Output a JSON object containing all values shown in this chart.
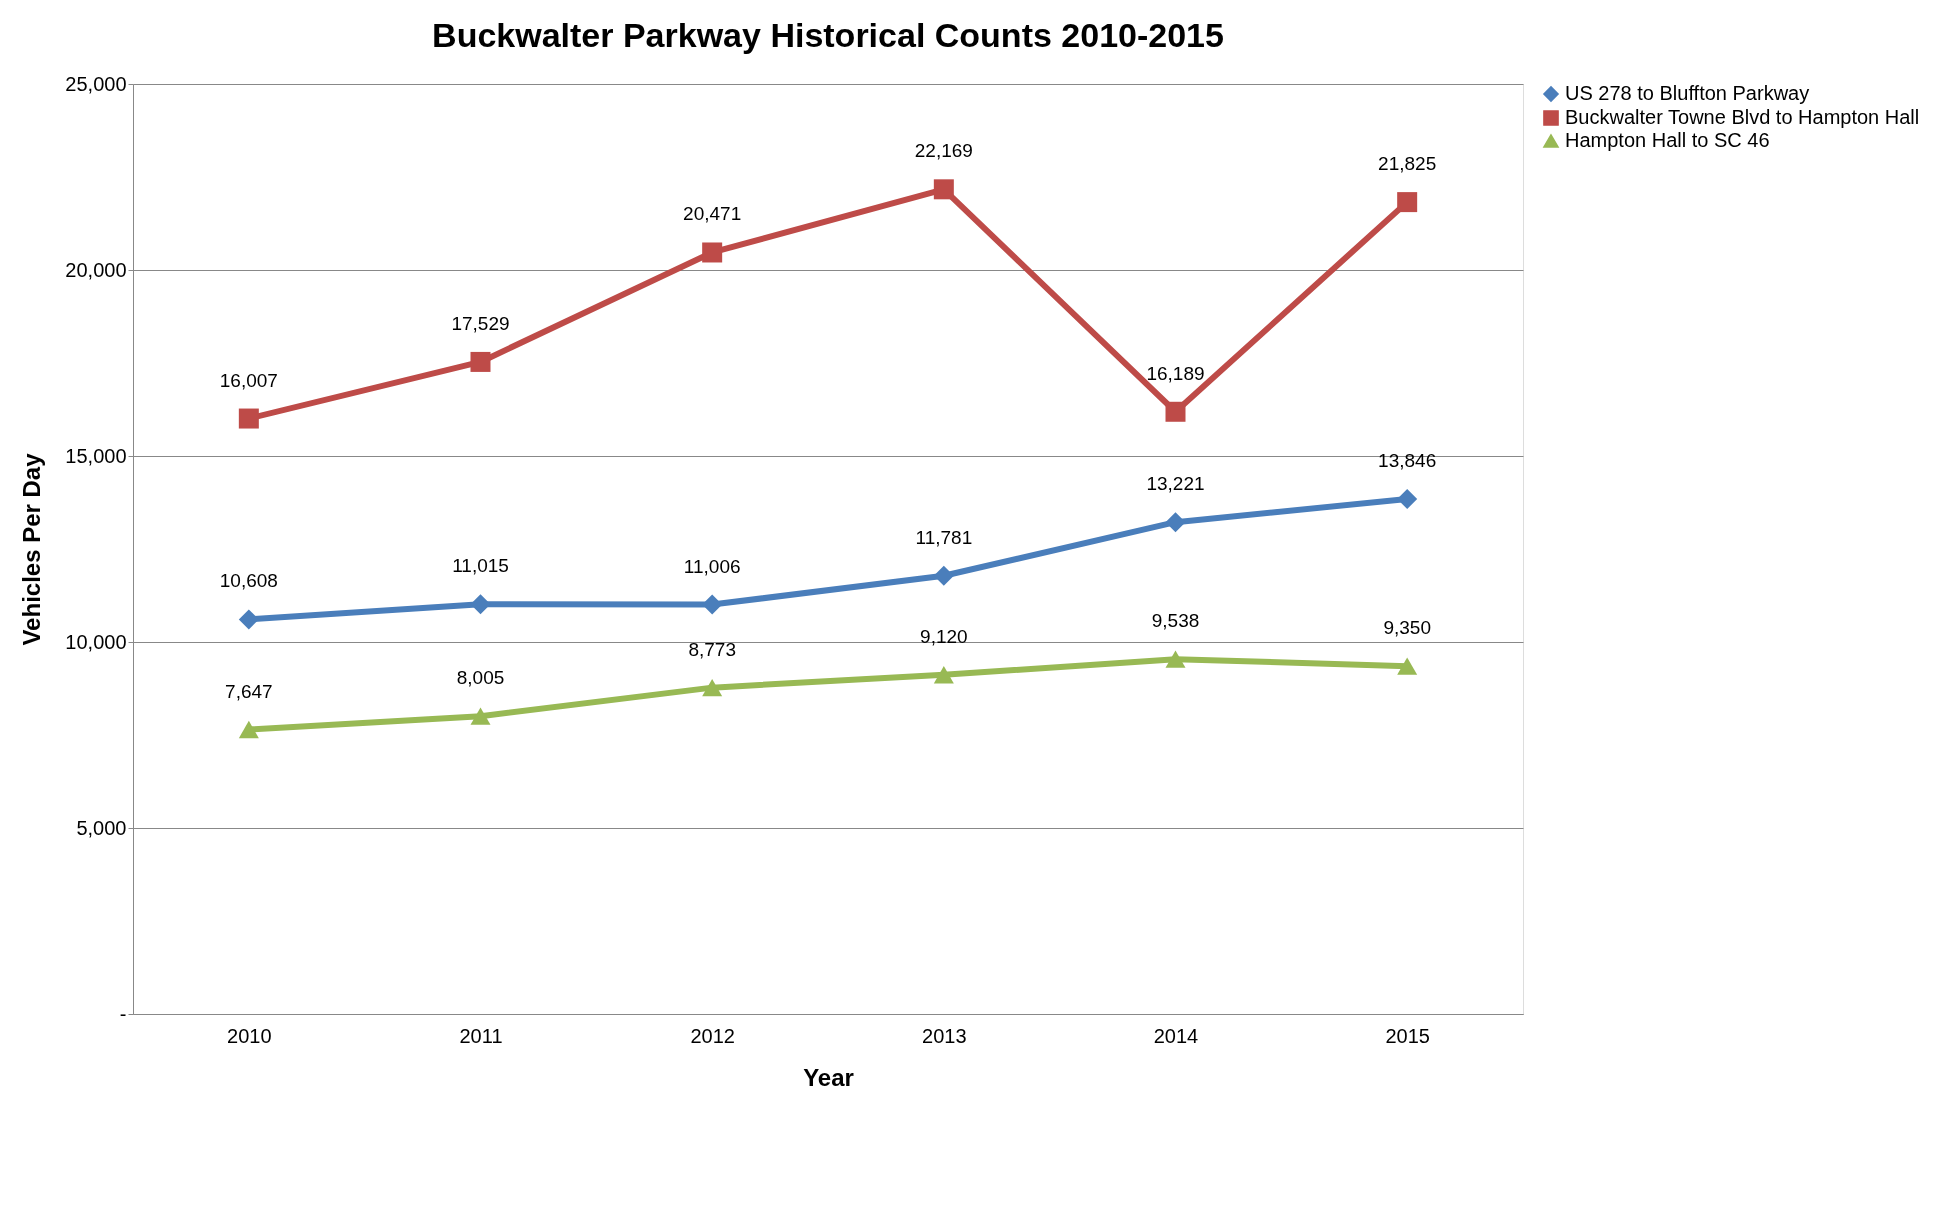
{
  "chart_data": {
    "type": "line",
    "title": "Buckwalter Parkway Historical Counts 2010-2015",
    "xlabel": "Year",
    "ylabel": "Vehicles Per Day",
    "categories": [
      "2010",
      "2011",
      "2012",
      "2013",
      "2014",
      "2015"
    ],
    "series": [
      {
        "name": "US 278 to Bluffton Parkway",
        "color": "#4a7ebb",
        "marker": "diamond",
        "values": [
          10608,
          11015,
          11006,
          11781,
          13221,
          13846
        ],
        "value_labels": [
          "10,608",
          "11,015",
          "11,006",
          "11,781",
          "13,221",
          "13,846"
        ]
      },
      {
        "name": "Buckwalter Towne Blvd to Hampton Hall",
        "color": "#be4b48",
        "marker": "square",
        "values": [
          16007,
          17529,
          20471,
          22169,
          16189,
          21825
        ],
        "value_labels": [
          "16,007",
          "17,529",
          "20,471",
          "22,169",
          "16,189",
          "21,825"
        ]
      },
      {
        "name": "Hampton Hall to SC 46",
        "color": "#98b954",
        "marker": "triangle",
        "values": [
          7647,
          8005,
          8773,
          9120,
          9538,
          9350
        ],
        "value_labels": [
          "7,647",
          "8,005",
          "8,773",
          "9,120",
          "9,538",
          "9,350"
        ]
      }
    ],
    "ylim": [
      0,
      25000
    ],
    "yticks": [
      {
        "value": 0,
        "label": "-"
      },
      {
        "value": 5000,
        "label": "5,000"
      },
      {
        "value": 10000,
        "label": "10,000"
      },
      {
        "value": 15000,
        "label": "15,000"
      },
      {
        "value": 20000,
        "label": "20,000"
      },
      {
        "value": 25000,
        "label": "25,000"
      }
    ],
    "grid": "y",
    "legend": "right",
    "line_style": "solid"
  }
}
